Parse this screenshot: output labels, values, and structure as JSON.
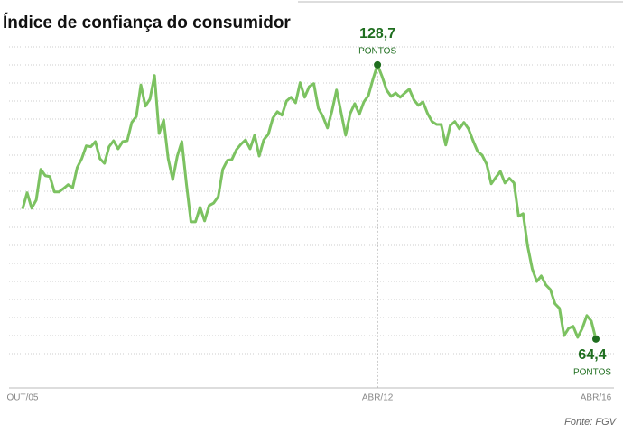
{
  "chart_data": {
    "type": "line",
    "title": "Índice de confiança do consumidor",
    "source": "Fonte: FGV",
    "annotation_unit": "PONTOS",
    "categories": [
      "OUT/05",
      null,
      null,
      null,
      null,
      null,
      null,
      null,
      null,
      null,
      null,
      null,
      null,
      null,
      null,
      null,
      null,
      null,
      null,
      null,
      null,
      null,
      null,
      null,
      null,
      null,
      null,
      null,
      null,
      null,
      null,
      null,
      null,
      null,
      null,
      null,
      null,
      null,
      null,
      null,
      null,
      null,
      null,
      null,
      null,
      null,
      null,
      null,
      null,
      null,
      null,
      null,
      null,
      null,
      null,
      null,
      null,
      null,
      null,
      null,
      null,
      null,
      null,
      null,
      null,
      null,
      null,
      null,
      null,
      null,
      null,
      null,
      null,
      null,
      null,
      null,
      null,
      null,
      "ABR/12",
      null,
      null,
      null,
      null,
      null,
      null,
      null,
      null,
      null,
      null,
      null,
      null,
      null,
      null,
      null,
      null,
      null,
      null,
      null,
      null,
      null,
      null,
      null,
      null,
      null,
      null,
      null,
      null,
      null,
      null,
      null,
      null,
      null,
      null,
      null,
      null,
      null,
      null,
      null,
      null,
      null,
      null,
      null,
      null,
      null,
      null,
      null,
      "ABR/16"
    ],
    "values": [
      94.9,
      98.7,
      95.1,
      97.0,
      104.2,
      102.7,
      102.5,
      98.9,
      98.9,
      99.7,
      100.6,
      99.9,
      104.6,
      106.7,
      109.7,
      109.5,
      110.7,
      106.7,
      105.6,
      109.5,
      110.9,
      109.0,
      110.7,
      110.9,
      115.2,
      116.6,
      124.0,
      119.0,
      120.7,
      126.2,
      112.6,
      115.8,
      106.7,
      101.8,
      107.3,
      110.7,
      100.8,
      91.9,
      91.9,
      95.3,
      92.1,
      95.7,
      96.3,
      97.8,
      104.2,
      106.3,
      106.5,
      108.8,
      110.1,
      111.1,
      109.0,
      112.2,
      107.3,
      111.1,
      112.4,
      116.2,
      117.7,
      116.9,
      120.2,
      121.1,
      119.8,
      124.5,
      121.1,
      123.6,
      124.3,
      118.5,
      116.6,
      113.9,
      117.9,
      122.8,
      117.5,
      112.2,
      117.3,
      119.6,
      117.1,
      120.0,
      121.5,
      125.3,
      128.7,
      126.0,
      122.8,
      121.3,
      122.1,
      121.1,
      122.1,
      123.0,
      120.5,
      119.2,
      120.0,
      117.3,
      115.4,
      114.7,
      114.7,
      109.9,
      114.5,
      115.4,
      113.7,
      115.2,
      113.7,
      110.9,
      108.4,
      107.5,
      105.4,
      100.8,
      102.3,
      103.7,
      101.0,
      102.1,
      101.0,
      93.2,
      93.8,
      86.2,
      80.9,
      77.9,
      79.2,
      77.1,
      76.0,
      72.7,
      71.6,
      65.2,
      66.9,
      67.4,
      64.8,
      66.9,
      69.9,
      68.6,
      64.4
    ],
    "value_labels": [
      null,
      null,
      null,
      null,
      null,
      null,
      null,
      null,
      null,
      null,
      null,
      null,
      null,
      null,
      null,
      null,
      null,
      null,
      null,
      null,
      null,
      null,
      null,
      null,
      null,
      null,
      null,
      null,
      null,
      null,
      null,
      null,
      null,
      null,
      null,
      null,
      null,
      null,
      null,
      null,
      null,
      null,
      null,
      null,
      null,
      null,
      null,
      null,
      null,
      null,
      null,
      null,
      null,
      null,
      null,
      null,
      null,
      null,
      null,
      null,
      null,
      null,
      null,
      null,
      null,
      null,
      null,
      null,
      null,
      null,
      null,
      null,
      null,
      null,
      null,
      null,
      null,
      null,
      "128,7",
      null,
      null,
      null,
      null,
      null,
      null,
      null,
      null,
      null,
      null,
      null,
      null,
      null,
      null,
      null,
      null,
      null,
      null,
      null,
      null,
      null,
      null,
      null,
      null,
      null,
      null,
      null,
      null,
      null,
      null,
      null,
      null,
      null,
      null,
      null,
      null,
      null,
      null,
      null,
      null,
      null,
      null,
      null,
      null,
      null,
      null,
      null,
      "64,4"
    ],
    "color": "#7cc261",
    "highlight_color": "#1f6e1f",
    "ylim": [
      57.6,
      132.9
    ],
    "grid": true
  }
}
